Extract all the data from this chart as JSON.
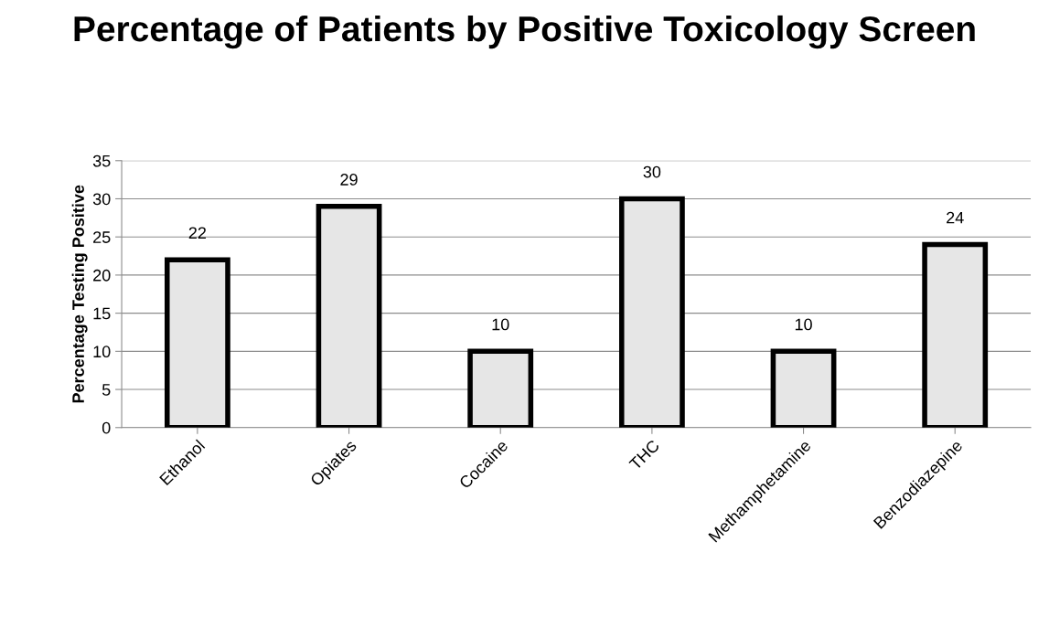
{
  "chart_data": {
    "type": "bar",
    "title": "Percentage of Patients by Positive Toxicology Screen",
    "ylabel": "Percentage Testing Positive",
    "categories": [
      "Ethanol",
      "Opiates",
      "Cocaine",
      "THC",
      "Methamphetamine",
      "Benzodiazepine"
    ],
    "values": [
      22,
      29,
      10,
      30,
      10,
      24
    ],
    "color": "#e6e6e6",
    "ylim": [
      0,
      35
    ],
    "yticks": [
      0,
      5,
      10,
      15,
      20,
      25,
      30,
      35
    ],
    "grid": "y",
    "data_labels": true
  }
}
